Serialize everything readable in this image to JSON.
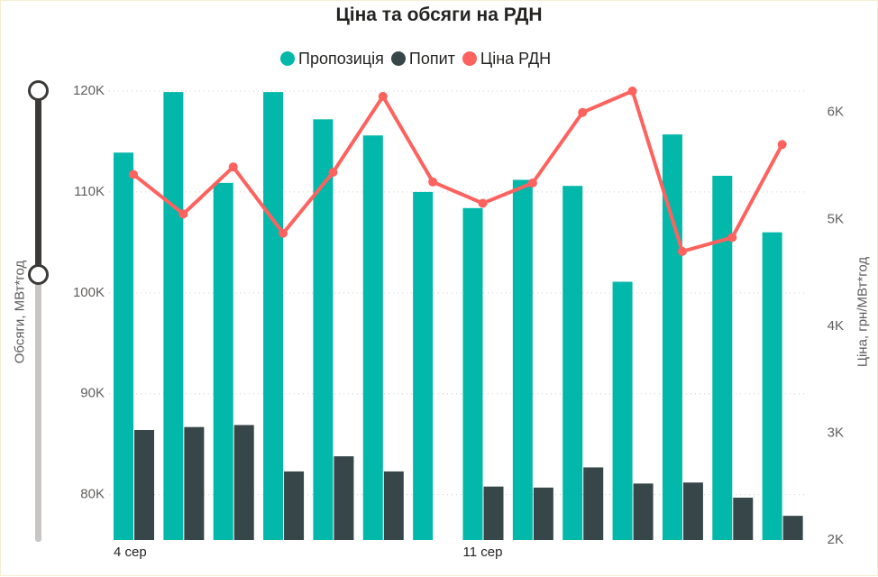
{
  "chart_data": {
    "type": "bar",
    "title": "Ціна та обсяги на РДН",
    "legend": [
      "Пропозиція",
      "Попит",
      "Ціна РДН"
    ],
    "legend_position": "top-center",
    "ylabel": "Обсяги, МВт*год",
    "y2label": "Ціна, грн/МВт*год",
    "x_tick_labels": [
      {
        "index": 0,
        "label": "4 сер"
      },
      {
        "index": 7,
        "label": "11 сер"
      }
    ],
    "y_ticks": [
      "80K",
      "90K",
      "100K",
      "110K",
      "120K"
    ],
    "y2_ticks": [
      "2K",
      "3K",
      "4K",
      "5K",
      "6K"
    ],
    "ylim": [
      75500,
      120000
    ],
    "y2lim": [
      2000,
      6200
    ],
    "grid": true,
    "colors": {
      "supply": "#01b8aa",
      "demand": "#374649",
      "price": "#fd625e"
    },
    "series": [
      {
        "name": "Пропозиція",
        "type": "bar",
        "values": [
          113900,
          119900,
          110900,
          119900,
          117200,
          115600,
          110000,
          108400,
          111200,
          110600,
          101100,
          115700,
          111600,
          106000
        ]
      },
      {
        "name": "Попит",
        "type": "bar",
        "values": [
          86400,
          86700,
          86900,
          82300,
          83800,
          82300,
          75500,
          80800,
          80700,
          82700,
          81100,
          81200,
          79700,
          77900
        ]
      },
      {
        "name": "Ціна РДН",
        "type": "line",
        "axis": "right",
        "values": [
          5420,
          5050,
          5490,
          4870,
          5440,
          6150,
          5350,
          5150,
          5340,
          6000,
          6200,
          4700,
          4830,
          5700
        ]
      }
    ]
  },
  "slider": {
    "range_fraction": 0.41,
    "colors": {
      "track": "#c8c6c4",
      "range": "#3b3a39"
    }
  }
}
